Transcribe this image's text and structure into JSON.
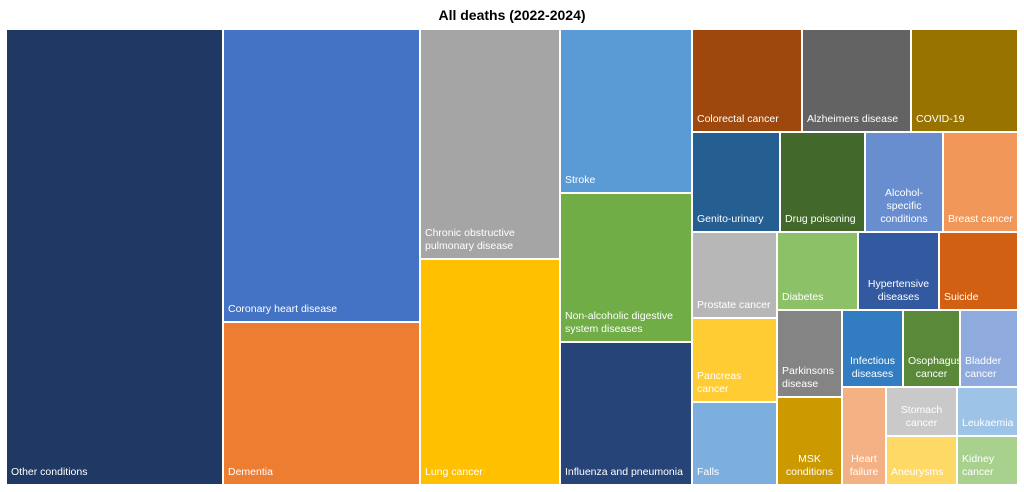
{
  "chart_data": {
    "type": "treemap",
    "title": "All deaths (2022-2024)",
    "items": [
      {
        "label": "Other conditions",
        "color": "#203864"
      },
      {
        "label": "Coronary heart disease",
        "color": "#4472C4"
      },
      {
        "label": "Dementia",
        "color": "#ED7D31"
      },
      {
        "label": "Chronic obstructive pulmonary disease",
        "color": "#A5A5A5"
      },
      {
        "label": "Lung cancer",
        "color": "#FFC000"
      },
      {
        "label": "Stroke",
        "color": "#5B9BD5"
      },
      {
        "label": "Non-alcoholic digestive system diseases",
        "color": "#70AD47"
      },
      {
        "label": "Influenza and pneumonia",
        "color": "#264478"
      },
      {
        "label": "Colorectal cancer",
        "color": "#9E480E"
      },
      {
        "label": "Alzheimers disease",
        "color": "#636363"
      },
      {
        "label": "COVID-19",
        "color": "#997300"
      },
      {
        "label": "Genito-urinary",
        "color": "#255E91"
      },
      {
        "label": "Drug poisoning",
        "color": "#43682B"
      },
      {
        "label": "Alcohol-specific conditions",
        "color": "#698ED0"
      },
      {
        "label": "Breast cancer",
        "color": "#F1975A"
      },
      {
        "label": "Prostate cancer",
        "color": "#B7B7B7"
      },
      {
        "label": "Pancreas cancer",
        "color": "#FFCD33"
      },
      {
        "label": "Falls",
        "color": "#7CAFDD"
      },
      {
        "label": "Diabetes",
        "color": "#8CC168"
      },
      {
        "label": "Hypertensive diseases",
        "color": "#335AA1"
      },
      {
        "label": "Suicide",
        "color": "#D26012"
      },
      {
        "label": "Parkinsons disease",
        "color": "#848484"
      },
      {
        "label": "MSK conditions",
        "color": "#CC9A00"
      },
      {
        "label": "Infectious diseases",
        "color": "#327DC2"
      },
      {
        "label": "Osophagus cancer",
        "color": "#5A8A39"
      },
      {
        "label": "Bladder cancer",
        "color": "#8FAADC"
      },
      {
        "label": "Heart failure",
        "color": "#F4B183"
      },
      {
        "label": "Stomach cancer",
        "color": "#C9C9C9"
      },
      {
        "label": "Aneurysms",
        "color": "#FFD966"
      },
      {
        "label": "Leukaemia",
        "color": "#9DC3E6"
      },
      {
        "label": "Kidney cancer",
        "color": "#A9D18E"
      }
    ]
  }
}
